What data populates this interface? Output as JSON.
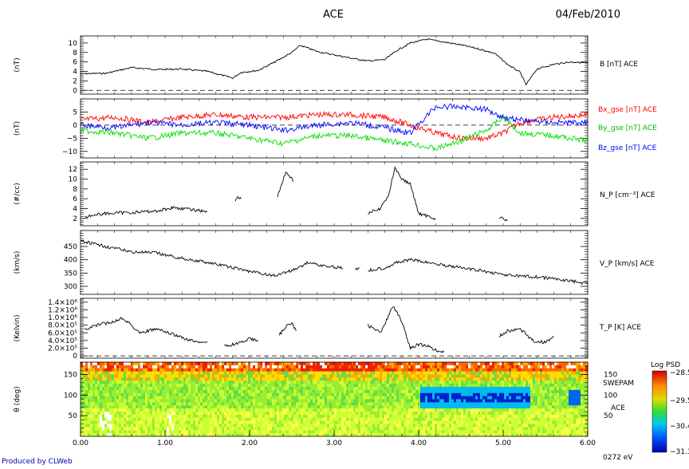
{
  "header": {
    "title": "ACE",
    "date": "04/Feb/2010"
  },
  "footer": {
    "credit": "Produced by CLWeb"
  },
  "colors": {
    "trace": "#000000",
    "bx": "#ff0000",
    "by": "#00dd00",
    "bz": "#0000ff",
    "credit": "#0000aa",
    "axis": "#000000"
  },
  "time_axis": {
    "ticks": [
      0,
      1,
      2,
      3,
      4,
      5,
      6
    ],
    "tick_labels": [
      "0.00",
      "1.00",
      "2.00",
      "3.00",
      "4.00",
      "5.00",
      "6.00"
    ],
    "range": [
      0,
      6
    ]
  },
  "chart_data": [
    {
      "type": "line",
      "ylabel": "(nT)",
      "ylim": [
        -0.8,
        11.5
      ],
      "yticks": [
        0,
        2,
        4,
        6,
        8,
        10
      ],
      "ytick_labels": [
        "0",
        "2",
        "4",
        "6",
        "8",
        "10"
      ],
      "reference_line": 0,
      "series": [
        {
          "name": "B [nT] ACE",
          "color": "#000000",
          "x": [
            0,
            0.3,
            0.6,
            0.9,
            1.2,
            1.5,
            1.8,
            1.9,
            2.1,
            2.3,
            2.5,
            2.6,
            2.8,
            3.0,
            3.2,
            3.4,
            3.6,
            3.75,
            3.9,
            4.1,
            4.3,
            4.5,
            4.7,
            4.9,
            5.05,
            5.2,
            5.27,
            5.4,
            5.6,
            5.8,
            6.0
          ],
          "y": [
            3.5,
            3.6,
            4.8,
            4.4,
            4.5,
            4.0,
            2.6,
            3.8,
            4.2,
            6.0,
            8.0,
            9.5,
            8.2,
            7.5,
            6.8,
            6.2,
            6.5,
            8.5,
            10.0,
            10.8,
            10.2,
            9.6,
            8.8,
            7.8,
            5.5,
            3.8,
            1.2,
            4.5,
            5.5,
            6.0,
            5.8
          ]
        }
      ]
    },
    {
      "type": "line",
      "ylabel": "(nT)",
      "ylim": [
        -12.5,
        10
      ],
      "yticks": [
        -10,
        -5,
        0,
        5
      ],
      "ytick_labels": [
        "−10",
        "−5",
        "0",
        "5"
      ],
      "reference_line": 0,
      "series": [
        {
          "name": "Bx_gse [nT] ACE",
          "color": "#ff0000",
          "x": [
            0,
            0.4,
            0.8,
            1.2,
            1.6,
            2.0,
            2.4,
            2.8,
            3.2,
            3.6,
            3.9,
            4.2,
            4.5,
            4.8,
            5.0,
            5.2,
            5.6,
            6.0
          ],
          "y": [
            2,
            3,
            1,
            3,
            4,
            3,
            3,
            4,
            4,
            3,
            0,
            -3,
            -5,
            -5,
            -3,
            1,
            3,
            4
          ]
        },
        {
          "name": "By_gse [nT] ACE",
          "color": "#00dd00",
          "x": [
            0,
            0.4,
            0.8,
            1.2,
            1.6,
            2.0,
            2.4,
            2.8,
            3.2,
            3.6,
            3.9,
            4.2,
            4.5,
            4.8,
            5.0,
            5.2,
            5.6,
            6.0
          ],
          "y": [
            -2,
            -3,
            -5,
            -3,
            -3,
            -5,
            -7,
            -4,
            -4,
            -6,
            -7,
            -9,
            -6,
            -2,
            3,
            -3,
            -4,
            -6
          ]
        },
        {
          "name": "Bz_gse [nT] ACE",
          "color": "#0000ff",
          "x": [
            0,
            0.4,
            0.8,
            1.2,
            1.6,
            2.0,
            2.4,
            2.8,
            3.2,
            3.6,
            3.9,
            4.2,
            4.5,
            4.8,
            5.0,
            5.2,
            5.6,
            6.0
          ],
          "y": [
            0,
            -1,
            1,
            0,
            1,
            0,
            -2,
            0,
            1,
            -1,
            -3,
            7,
            7,
            6,
            3,
            2,
            1,
            1
          ]
        }
      ]
    },
    {
      "type": "line",
      "ylabel": "(#/cc)",
      "ylim": [
        0.5,
        13.5
      ],
      "yticks": [
        2,
        4,
        6,
        8,
        10,
        12
      ],
      "ytick_labels": [
        "2",
        "4",
        "6",
        "8",
        "10",
        "12"
      ],
      "series": [
        {
          "name": "N_P [cm⁻³] ACE",
          "color": "#000000",
          "segments": [
            {
              "x": [
                0.05,
                0.3,
                0.6,
                0.9,
                1.1,
                1.3,
                1.5
              ],
              "y": [
                2.4,
                3.0,
                3.2,
                3.5,
                4.2,
                3.8,
                3.4
              ]
            },
            {
              "x": [
                1.83,
                1.86,
                1.9
              ],
              "y": [
                5.5,
                6.5,
                6.0
              ]
            },
            {
              "x": [
                2.33,
                2.38,
                2.43,
                2.48,
                2.52
              ],
              "y": [
                6.5,
                9.0,
                11.5,
                10.5,
                9.5
              ]
            },
            {
              "x": [
                3.4,
                3.55,
                3.65,
                3.72,
                3.8,
                3.9,
                4.0,
                4.1,
                4.2
              ],
              "y": [
                3.0,
                4.0,
                7.0,
                12.5,
                10.0,
                9.0,
                3.0,
                2.5,
                2.0
              ]
            },
            {
              "x": [
                4.95,
                5.0,
                5.05
              ],
              "y": [
                2.0,
                2.0,
                1.5
              ]
            }
          ]
        }
      ]
    },
    {
      "type": "line",
      "ylabel": "(km/s)",
      "ylim": [
        270,
        510
      ],
      "yticks": [
        300,
        350,
        400,
        450
      ],
      "ytick_labels": [
        "300",
        "350",
        "400",
        "450"
      ],
      "series": [
        {
          "name": "V_P [km/s] ACE",
          "color": "#000000",
          "segments": [
            {
              "x": [
                0,
                0.3,
                0.6,
                0.9,
                1.2,
                1.5,
                1.8,
                2.1,
                2.3,
                2.5,
                2.7,
                2.9,
                3.1
              ],
              "y": [
                470,
                450,
                430,
                425,
                405,
                390,
                370,
                350,
                340,
                360,
                390,
                375,
                370
              ]
            },
            {
              "x": [
                3.25,
                3.3
              ],
              "y": [
                365,
                368
              ]
            },
            {
              "x": [
                3.4,
                3.6,
                3.75,
                3.9,
                4.2,
                4.5,
                4.8,
                5.1,
                5.4,
                5.7,
                6.0
              ],
              "y": [
                360,
                370,
                390,
                400,
                385,
                370,
                355,
                340,
                335,
                325,
                310
              ]
            }
          ]
        }
      ]
    },
    {
      "type": "line",
      "ylabel": "(Kelvin)",
      "ylim": [
        -60000,
        1500000
      ],
      "yticks": [
        0,
        200000,
        400000,
        600000,
        800000,
        1000000,
        1200000,
        1400000
      ],
      "ytick_labels": [
        "0",
        "2.0×10⁵",
        "4.0×10⁵",
        "6.0×10⁵",
        "8.0×10⁵",
        "1.0×10⁶",
        "1.2×10⁶",
        "1.4×10⁶"
      ],
      "reference_line": 0,
      "series": [
        {
          "name": "T_P [K] ACE",
          "color": "#000000",
          "segments": [
            {
              "x": [
                0.05,
                0.2,
                0.4,
                0.5,
                0.7,
                0.9,
                1.1,
                1.3,
                1.5
              ],
              "y": [
                700000,
                800000,
                900000,
                1000000,
                600000,
                700000,
                550000,
                400000,
                350000
              ]
            },
            {
              "x": [
                1.7,
                1.9,
                2.0,
                2.1
              ],
              "y": [
                250000,
                350000,
                450000,
                380000
              ]
            },
            {
              "x": [
                2.35,
                2.45,
                2.5,
                2.55
              ],
              "y": [
                550000,
                800000,
                850000,
                650000
              ]
            },
            {
              "x": [
                3.4,
                3.55,
                3.7,
                3.8,
                3.9,
                4.0,
                4.1,
                4.2,
                4.3
              ],
              "y": [
                800000,
                600000,
                1300000,
                900000,
                200000,
                300000,
                250000,
                150000,
                100000
              ]
            },
            {
              "x": [
                4.95,
                5.05,
                5.2,
                5.35,
                5.5,
                5.6
              ],
              "y": [
                500000,
                650000,
                700000,
                400000,
                350000,
                500000
              ]
            }
          ]
        }
      ]
    },
    {
      "type": "heatmap",
      "ylabel": "θ (deg)",
      "ylim": [
        0,
        180
      ],
      "yticks": [
        50,
        100,
        150
      ],
      "ytick_labels": [
        "50",
        "100",
        "150"
      ],
      "annotations": [
        "SWEPAM",
        "ACE",
        "0272 eV"
      ],
      "colorbar": {
        "title": "Log PSD",
        "range": [
          -31.3,
          -28.5
        ],
        "ticks": [
          -28.5,
          -29.5,
          -30.4,
          -31.3
        ],
        "tick_labels": [
          "−28.5",
          "−29.5",
          "−30.4",
          "−31.3"
        ]
      }
    }
  ],
  "legends": {
    "bmag": "B [nT] ACE",
    "bx": "Bx_gse [nT] ACE",
    "by": "By_gse [nT] ACE",
    "bz": "Bz_gse [nT] ACE",
    "np": "N_P [cm⁻³] ACE",
    "vp": "V_P [km/s] ACE",
    "tp": "T_P [K] ACE"
  }
}
